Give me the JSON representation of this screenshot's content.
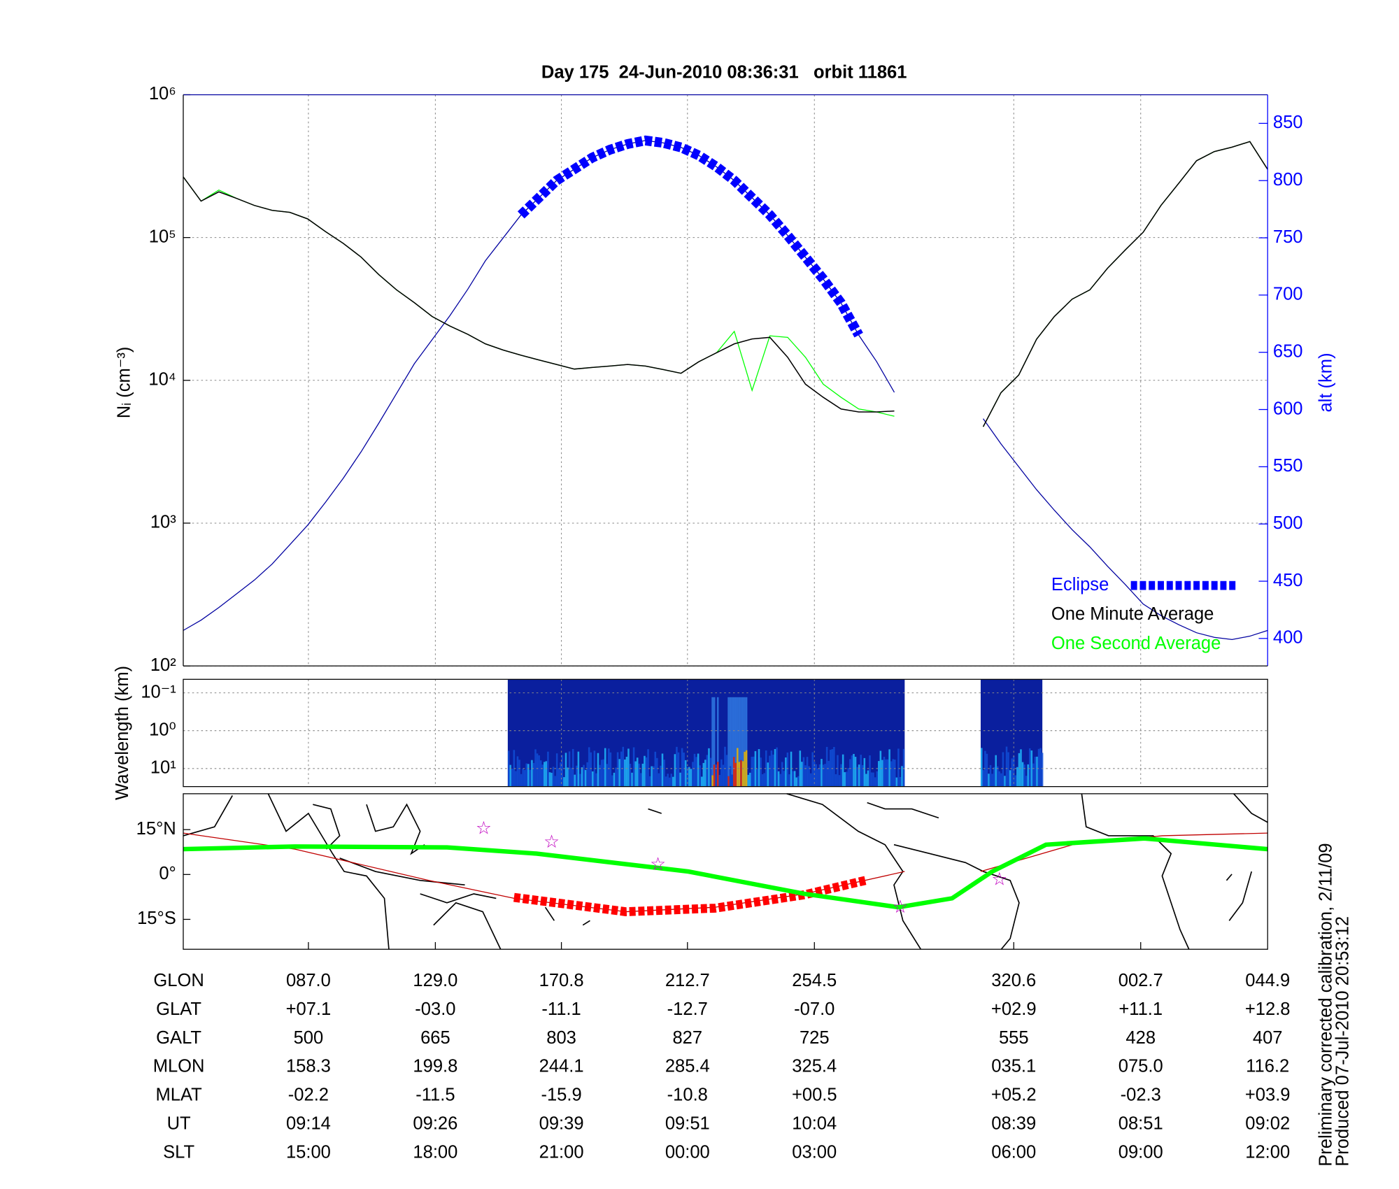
{
  "chart_data": [
    {
      "type": "line",
      "title": "Day 175  24-Jun-2010 08:36:31   orbit 11861",
      "ylabel": "Nᵢ (cm⁻³)",
      "y2label": "alt (km)",
      "yscale": "log",
      "ylim": [
        100,
        1000000
      ],
      "yticks": [
        {
          "value": 100,
          "label": "10²"
        },
        {
          "value": 1000,
          "label": "10³"
        },
        {
          "value": 10000,
          "label": "10⁴"
        },
        {
          "value": 100000,
          "label": "10⁵"
        },
        {
          "value": 1000000,
          "label": "10⁶"
        }
      ],
      "y2lim": [
        376,
        875
      ],
      "y2ticks": [
        400,
        450,
        500,
        550,
        600,
        650,
        700,
        750,
        800,
        850
      ],
      "grid": true,
      "legend": "lower right",
      "series": [
        {
          "color": "#0000a0",
          "axis": "y2",
          "values": [
            407,
            416,
            427,
            439,
            451,
            465,
            482,
            499,
            519,
            540,
            563,
            588,
            614,
            640,
            661,
            682,
            705,
            730,
            750,
            770,
            785,
            800,
            810,
            820,
            827,
            832,
            835,
            833,
            829,
            822,
            812,
            800,
            785,
            770,
            752,
            733,
            714,
            693,
            665,
            642,
            615,
            null,
            null,
            null,
            null,
            592,
            570,
            550,
            530,
            512,
            495,
            480,
            463,
            447,
            430,
            420,
            412,
            405,
            401,
            399,
            402,
            407
          ]
        },
        {
          "name": "Eclipse",
          "color": "#0000ff",
          "axis": "y2",
          "values": [
            null,
            null,
            null,
            null,
            null,
            null,
            null,
            null,
            null,
            null,
            null,
            null,
            null,
            null,
            null,
            null,
            null,
            null,
            null,
            770,
            785,
            800,
            810,
            820,
            827,
            832,
            835,
            833,
            829,
            822,
            812,
            800,
            785,
            770,
            752,
            733,
            714,
            693,
            665,
            null,
            null,
            null,
            null,
            null,
            null,
            null,
            null,
            null,
            null,
            null,
            null,
            null,
            null,
            null,
            null,
            null,
            null,
            null,
            null,
            null,
            null,
            null
          ]
        },
        {
          "name": "One Minute Average",
          "color": "#000000",
          "values": [
            266000,
            180000,
            209000,
            188000,
            168000,
            155000,
            150000,
            135000,
            110000,
            91000,
            73000,
            55000,
            43000,
            35000,
            28000,
            24000,
            21000,
            18000,
            16300,
            15000,
            13900,
            12900,
            12000,
            12300,
            12600,
            12900,
            12600,
            11900,
            11200,
            13500,
            15600,
            18000,
            19500,
            20000,
            14500,
            9400,
            7600,
            6300,
            6000,
            6000,
            6100,
            null,
            null,
            null,
            null,
            4730,
            8200,
            10900,
            19400,
            28000,
            37000,
            43000,
            61000,
            82000,
            109000,
            168000,
            240000,
            345000,
            400000,
            430000,
            470000,
            300000
          ]
        },
        {
          "name": "One Second Average",
          "color": "#00ff00",
          "values": [
            266000,
            180000,
            215000,
            188000,
            168000,
            155000,
            150000,
            135000,
            110000,
            91000,
            73000,
            55000,
            43000,
            35000,
            28000,
            24000,
            21000,
            18000,
            16300,
            15000,
            13900,
            12900,
            12000,
            12300,
            12600,
            12900,
            12600,
            11900,
            11200,
            13500,
            15600,
            22000,
            8500,
            20500,
            20000,
            14500,
            9400,
            7600,
            6300,
            6000,
            5600,
            null,
            null,
            null,
            null,
            4730,
            8200,
            10900,
            19400,
            28000,
            37000,
            43000,
            61000,
            82000,
            109000,
            168000,
            240000,
            345000,
            400000,
            430000,
            470000,
            300000
          ]
        }
      ]
    },
    {
      "type": "spectrogram",
      "ylabel": "Wavelength (km)",
      "yscale": "log",
      "ylim": [
        30,
        0.044
      ],
      "yticks": [
        {
          "value": 0.1,
          "label": "10⁻¹"
        },
        {
          "value": 1,
          "label": "10⁰"
        },
        {
          "value": 10,
          "label": "10¹"
        }
      ]
    },
    {
      "type": "map",
      "ylim": [
        -25,
        27
      ],
      "yticks": [
        {
          "value": 15,
          "label": "15°N"
        },
        {
          "value": 0,
          "label": "0°"
        },
        {
          "value": -15,
          "label": "15°S"
        }
      ]
    }
  ],
  "table": {
    "rows": [
      [
        "GLON",
        "087.0",
        "129.0",
        "170.8",
        "212.7",
        "254.5",
        "320.6",
        "002.7",
        "044.9"
      ],
      [
        "GLAT",
        "+07.1",
        "-03.0",
        "-11.1",
        "-12.7",
        "-07.0",
        "+02.9",
        "+11.1",
        "+12.8"
      ],
      [
        "GALT",
        "500",
        "665",
        "803",
        "827",
        "725",
        "555",
        "428",
        "407"
      ],
      [
        "MLON",
        "158.3",
        "199.8",
        "244.1",
        "285.4",
        "325.4",
        "035.1",
        "075.0",
        "116.2"
      ],
      [
        "MLAT",
        "-02.2",
        "-11.5",
        "-15.9",
        "-10.8",
        "+00.5",
        "+05.2",
        "-02.3",
        "+03.9"
      ],
      [
        "UT",
        "09:14",
        "09:26",
        "09:39",
        "09:51",
        "10:04",
        "08:39",
        "08:51",
        "09:02"
      ],
      [
        "SLT",
        "15:00",
        "18:00",
        "21:00",
        "00:00",
        "03:00",
        "06:00",
        "09:00",
        "12:00"
      ]
    ]
  },
  "notes": [
    "Preliminary corrected calibration, 2/11/09",
    "Produced 07-Jul-2010 20:53:12"
  ]
}
